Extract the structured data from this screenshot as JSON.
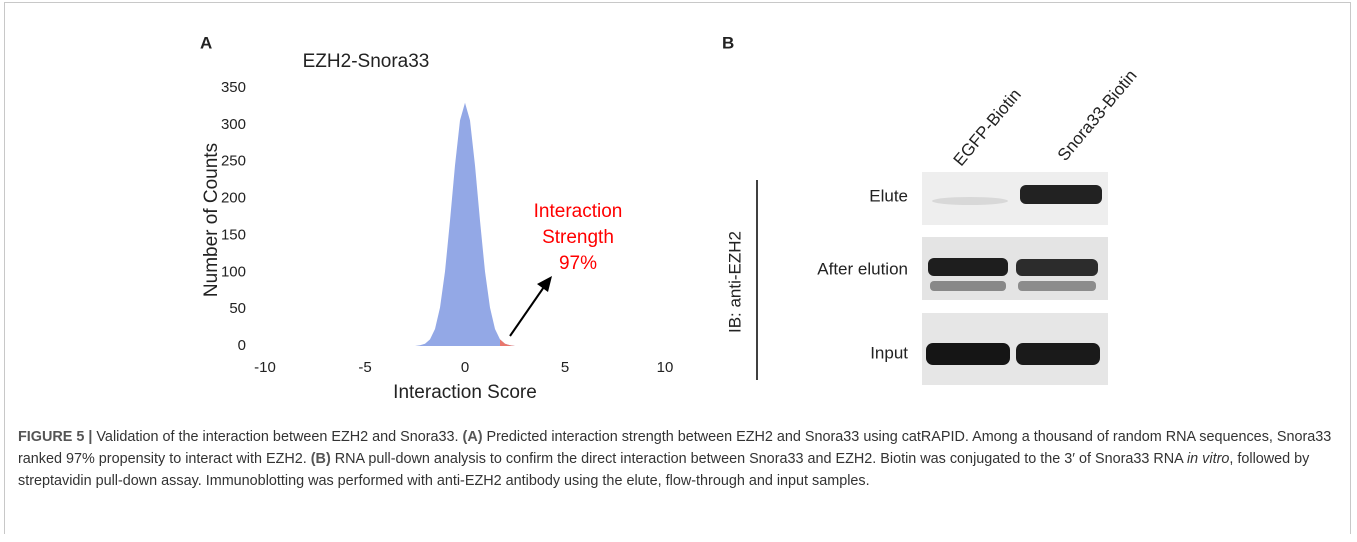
{
  "panel_labels": [
    "A",
    "B"
  ],
  "chart_data": {
    "type": "area",
    "title": "EZH2-Snora33",
    "x_label": "Interaction Score",
    "y_label": "Number of Counts",
    "x": [
      -2.5,
      -2.25,
      -2,
      -1.75,
      -1.5,
      -1.25,
      -1,
      -0.75,
      -0.5,
      -0.25,
      0,
      0.25,
      0.5,
      0.75,
      1,
      1.25,
      1.5,
      1.75,
      2,
      2.25,
      2.5
    ],
    "series": [
      {
        "color": "#93a8e6",
        "values": [
          0,
          1,
          3,
          9,
          23,
          52,
          101,
          170,
          245,
          306,
          330,
          306,
          245,
          170,
          101,
          52,
          23,
          9,
          3,
          1,
          0
        ]
      },
      {
        "color": "#e8776d",
        "values": [
          null,
          null,
          null,
          null,
          null,
          null,
          null,
          null,
          null,
          null,
          null,
          null,
          null,
          null,
          null,
          null,
          null,
          9,
          3,
          1,
          0
        ]
      }
    ],
    "xlim": [
      -10,
      10
    ],
    "xticks": [
      -10,
      -5,
      0,
      5,
      10
    ],
    "ylim": [
      0,
      350
    ],
    "yticks": [
      0,
      50,
      100,
      150,
      200,
      250,
      300,
      350
    ],
    "grid": false,
    "annotation": {
      "lines": [
        "Interaction",
        "Strength",
        "97%"
      ],
      "color": "#ff0000"
    }
  },
  "blot": {
    "lanes": [
      "EGFP-Biotin",
      "Snora33-Biotin"
    ],
    "rows": [
      "Elute",
      "After elution",
      "Input"
    ],
    "antibody": "IB: anti-EZH2"
  },
  "caption": {
    "runs": [
      "FIGURE 5 |",
      " Validation of the interaction between EZH2 and Snora33. ",
      "(A)",
      " Predicted interaction strength between EZH2 and Snora33 using catRAPID. Among a thousand of random RNA sequences, Snora33 ranked 97% propensity to interact with EZH2. ",
      "(B)",
      " RNA pull-down analysis to confirm the direct interaction between Snora33 and EZH2. Biotin was conjugated to the 3′ of Snora33 RNA ",
      "in vitro",
      ", followed by streptavidin pull-down assay. Immunoblotting was performed with anti-EZH2 antibody using the elute, flow-through and input samples."
    ]
  }
}
